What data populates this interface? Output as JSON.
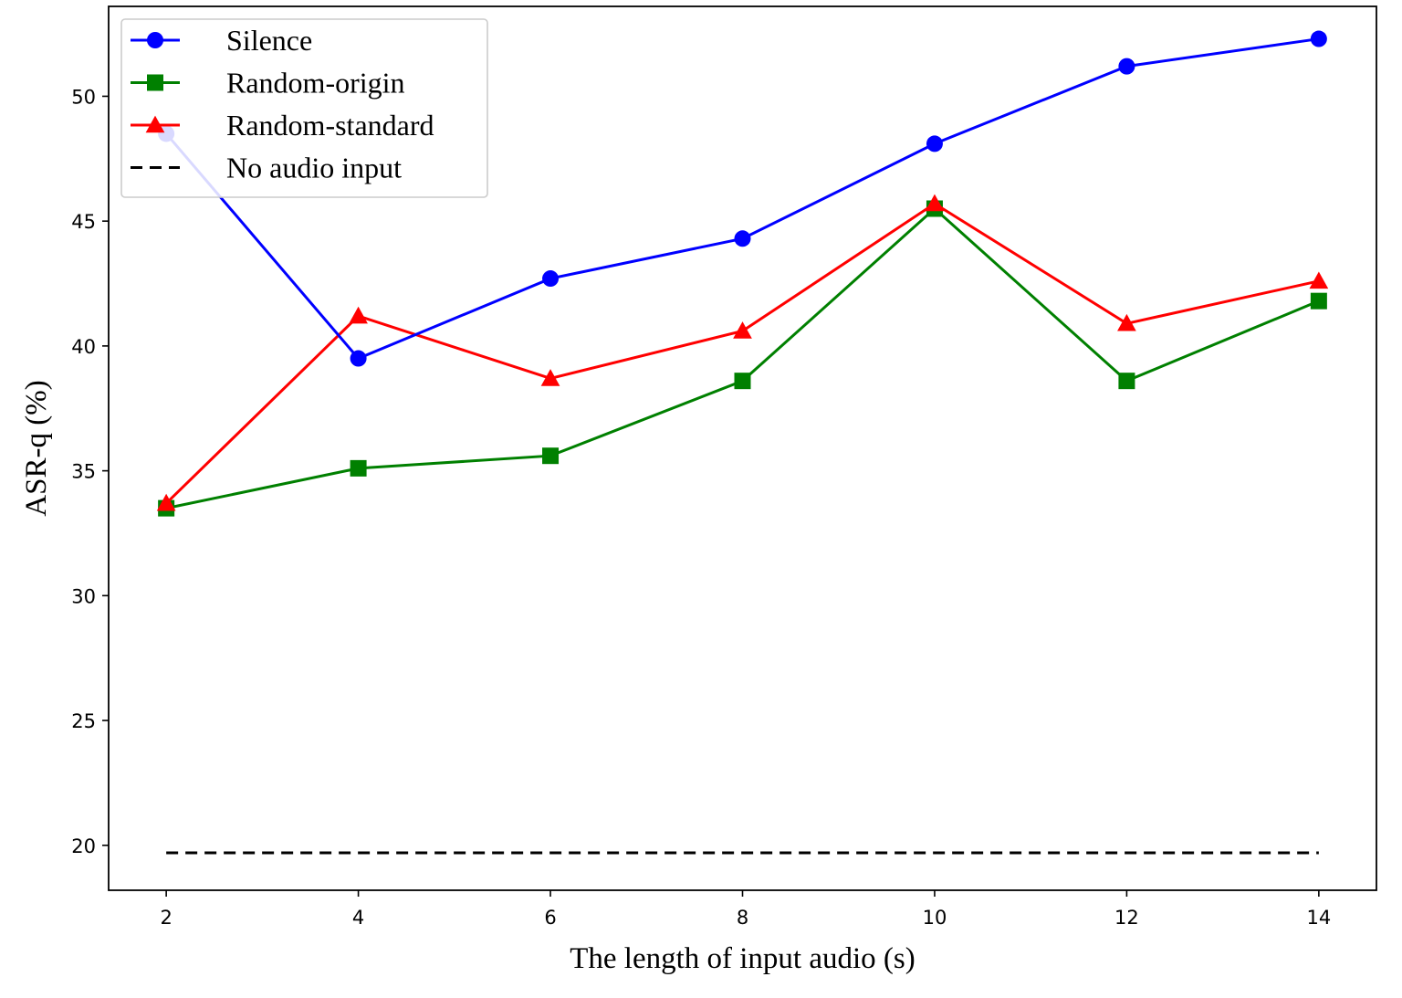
{
  "chart_data": {
    "type": "line",
    "xlabel": "The length of input audio (s)",
    "ylabel": "ASR-q (%)",
    "x": [
      2,
      4,
      6,
      8,
      10,
      12,
      14
    ],
    "xticks": [
      2,
      4,
      6,
      8,
      10,
      12,
      14
    ],
    "yticks": [
      20,
      25,
      30,
      35,
      40,
      45,
      50
    ],
    "xlim": [
      1.4,
      14.6
    ],
    "ylim": [
      18.2,
      53.6
    ],
    "grid": false,
    "legend_position": "upper-left",
    "series": [
      {
        "name": "Silence",
        "color": "#0000ff",
        "marker": "circle",
        "linestyle": "solid",
        "values": [
          48.5,
          39.5,
          42.7,
          44.3,
          48.1,
          51.2,
          52.3
        ]
      },
      {
        "name": "Random-origin",
        "color": "#008000",
        "marker": "square",
        "linestyle": "solid",
        "values": [
          33.5,
          35.1,
          35.6,
          38.6,
          45.5,
          38.6,
          41.8
        ]
      },
      {
        "name": "Random-standard",
        "color": "#ff0000",
        "marker": "triangle",
        "linestyle": "solid",
        "values": [
          33.7,
          41.2,
          38.7,
          40.6,
          45.7,
          40.9,
          42.6
        ]
      },
      {
        "name": "No audio input",
        "color": "#000000",
        "marker": "none",
        "linestyle": "dashed",
        "values": [
          19.7,
          19.7,
          19.7,
          19.7,
          19.7,
          19.7,
          19.7
        ]
      }
    ]
  }
}
